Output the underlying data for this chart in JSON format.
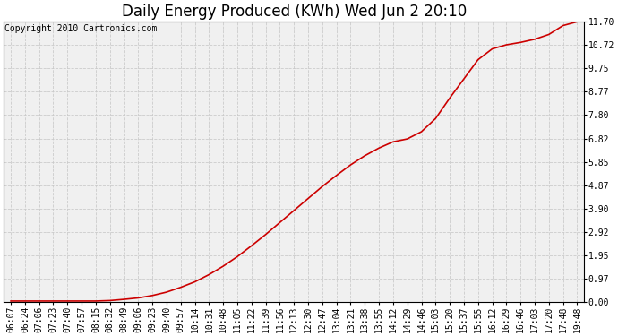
{
  "title": "Daily Energy Produced (KWh) Wed Jun 2 20:10",
  "copyright_text": "Copyright 2010 Cartronics.com",
  "line_color": "#cc0000",
  "background_color": "#ffffff",
  "plot_bg_color": "#f0f0f0",
  "grid_color": "#c8c8c8",
  "grid_style": "--",
  "yticks": [
    0.0,
    0.97,
    1.95,
    2.92,
    3.9,
    4.87,
    5.85,
    6.82,
    7.8,
    8.77,
    9.75,
    10.72,
    11.7
  ],
  "ylim": [
    0.0,
    11.7
  ],
  "x_labels": [
    "06:07",
    "06:24",
    "07:06",
    "07:23",
    "07:40",
    "07:57",
    "08:15",
    "08:32",
    "08:49",
    "09:06",
    "09:23",
    "09:40",
    "09:57",
    "10:14",
    "10:31",
    "10:48",
    "11:05",
    "11:22",
    "11:39",
    "11:56",
    "12:13",
    "12:30",
    "12:47",
    "13:04",
    "13:21",
    "13:38",
    "13:55",
    "14:12",
    "14:29",
    "14:46",
    "15:03",
    "15:20",
    "15:37",
    "15:55",
    "16:12",
    "16:29",
    "16:46",
    "17:03",
    "17:20",
    "17:48",
    "19:48"
  ],
  "y_values": [
    0.05,
    0.05,
    0.05,
    0.05,
    0.05,
    0.05,
    0.05,
    0.07,
    0.12,
    0.18,
    0.28,
    0.42,
    0.62,
    0.85,
    1.15,
    1.5,
    1.9,
    2.35,
    2.82,
    3.32,
    3.82,
    4.32,
    4.82,
    5.28,
    5.72,
    6.1,
    6.42,
    6.68,
    6.8,
    7.1,
    7.65,
    8.5,
    9.3,
    10.1,
    10.55,
    10.72,
    10.82,
    10.95,
    11.15,
    11.52,
    11.68
  ],
  "title_fontsize": 12,
  "tick_fontsize": 7,
  "copyright_fontsize": 7,
  "line_width": 1.2,
  "fig_width": 6.9,
  "fig_height": 3.75,
  "dpi": 100
}
